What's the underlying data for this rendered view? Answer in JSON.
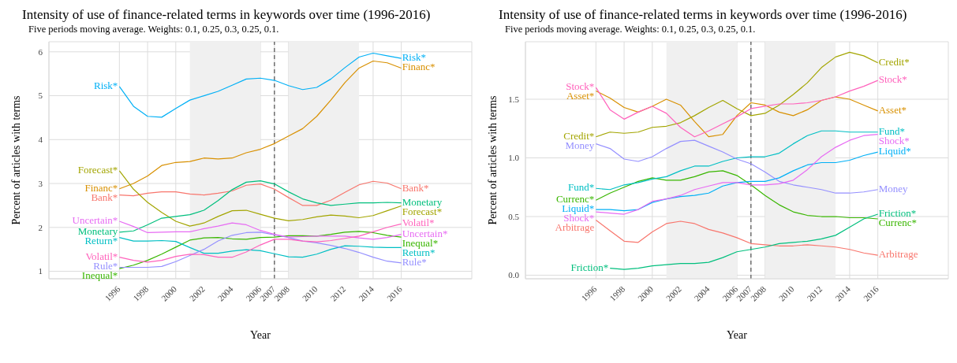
{
  "chart_data": [
    {
      "type": "line",
      "title": "Intensity of use of finance-related terms in keywords over time (1996-2016)",
      "subtitle": "Five periods moving average. Weights: 0.1, 0.25, 0.3, 0.25, 0.1.",
      "xlabel": "Year",
      "ylabel": "Percent of articles with terms",
      "x": [
        1996,
        1997,
        1998,
        1999,
        2000,
        2001,
        2002,
        2003,
        2004,
        2005,
        2006,
        2007,
        2008,
        2009,
        2010,
        2011,
        2012,
        2013,
        2014,
        2015,
        2016
      ],
      "series": [
        {
          "name": "Bank*",
          "color": "#f8766d",
          "values": [
            2.74,
            2.72,
            2.78,
            2.81,
            2.81,
            2.76,
            2.74,
            2.78,
            2.83,
            2.96,
            2.99,
            2.87,
            2.68,
            2.5,
            2.5,
            2.62,
            2.8,
            2.97,
            3.05,
            3.01,
            2.88
          ]
        },
        {
          "name": "Financ*",
          "color": "#d89000",
          "values": [
            2.88,
            3.0,
            3.17,
            3.41,
            3.48,
            3.5,
            3.58,
            3.56,
            3.58,
            3.7,
            3.78,
            3.91,
            4.08,
            4.25,
            4.53,
            4.9,
            5.3,
            5.63,
            5.79,
            5.75,
            5.63
          ]
        },
        {
          "name": "Forecast*",
          "color": "#a3a500",
          "values": [
            3.29,
            2.87,
            2.57,
            2.34,
            2.14,
            2.03,
            2.1,
            2.25,
            2.38,
            2.39,
            2.3,
            2.21,
            2.15,
            2.18,
            2.24,
            2.28,
            2.26,
            2.22,
            2.27,
            2.38,
            2.49
          ]
        },
        {
          "name": "Inequal*",
          "color": "#39b600",
          "values": [
            1.06,
            1.14,
            1.25,
            1.39,
            1.55,
            1.71,
            1.76,
            1.77,
            1.74,
            1.73,
            1.77,
            1.78,
            1.81,
            1.81,
            1.8,
            1.84,
            1.89,
            1.91,
            1.88,
            1.82,
            1.78
          ]
        },
        {
          "name": "Monetary",
          "color": "#00bf7d",
          "values": [
            1.89,
            1.92,
            2.06,
            2.21,
            2.25,
            2.29,
            2.39,
            2.61,
            2.86,
            3.03,
            3.06,
            2.99,
            2.81,
            2.65,
            2.56,
            2.5,
            2.53,
            2.56,
            2.56,
            2.57,
            2.56
          ]
        },
        {
          "name": "Return*",
          "color": "#00bfc4",
          "values": [
            1.77,
            1.69,
            1.69,
            1.7,
            1.68,
            1.54,
            1.41,
            1.41,
            1.46,
            1.49,
            1.47,
            1.4,
            1.33,
            1.32,
            1.39,
            1.5,
            1.58,
            1.57,
            1.55,
            1.54,
            1.54
          ]
        },
        {
          "name": "Risk*",
          "color": "#00b0f6",
          "values": [
            5.21,
            4.76,
            4.53,
            4.51,
            4.71,
            4.9,
            5.0,
            5.1,
            5.24,
            5.38,
            5.4,
            5.35,
            5.23,
            5.14,
            5.19,
            5.38,
            5.64,
            5.88,
            5.97,
            5.91,
            5.85
          ]
        },
        {
          "name": "Rule*",
          "color": "#9590ff",
          "values": [
            1.09,
            1.09,
            1.09,
            1.11,
            1.22,
            1.36,
            1.5,
            1.69,
            1.82,
            1.88,
            1.89,
            1.83,
            1.77,
            1.69,
            1.65,
            1.59,
            1.52,
            1.43,
            1.32,
            1.23,
            1.19
          ]
        },
        {
          "name": "Uncertain*",
          "color": "#e76bf3",
          "values": [
            2.14,
            2.02,
            1.88,
            1.89,
            1.9,
            1.9,
            1.97,
            2.03,
            2.1,
            2.06,
            1.93,
            1.84,
            1.78,
            1.79,
            1.8,
            1.8,
            1.8,
            1.76,
            1.73,
            1.77,
            1.84
          ]
        },
        {
          "name": "Volatil*",
          "color": "#ff62bc",
          "values": [
            1.32,
            1.25,
            1.21,
            1.25,
            1.34,
            1.39,
            1.38,
            1.32,
            1.32,
            1.44,
            1.6,
            1.73,
            1.73,
            1.69,
            1.67,
            1.7,
            1.75,
            1.8,
            1.9,
            2.0,
            2.08
          ]
        }
      ],
      "xlim": [
        1991,
        2021
      ],
      "xticks": [
        1996,
        1998,
        2000,
        2002,
        2004,
        2006,
        2007,
        2008,
        2010,
        2012,
        2014,
        2016
      ],
      "ylim": [
        0.83,
        6.23
      ],
      "yticks": [
        1,
        2,
        3,
        4,
        5,
        6
      ],
      "grid": true,
      "bands": [
        {
          "axis": "x",
          "from": 2001,
          "to": 2006,
          "color": "#f0f0f0"
        },
        {
          "axis": "x",
          "from": 2008,
          "to": 2013,
          "color": "#f0f0f0"
        }
      ],
      "ref_lines": [
        {
          "axis": "x",
          "value": 2007,
          "color": "#333333",
          "line_style": "dashed"
        }
      ]
    },
    {
      "type": "line",
      "title": "Intensity of use of finance-related terms in keywords over time (1996-2016)",
      "subtitle": "Five periods moving average. Weights: 0.1, 0.25, 0.3, 0.25, 0.1.",
      "xlabel": "Year",
      "ylabel": "Percent of articles with terms",
      "x": [
        1996,
        1997,
        1998,
        1999,
        2000,
        2001,
        2002,
        2003,
        2004,
        2005,
        2006,
        2007,
        2008,
        2009,
        2010,
        2011,
        2012,
        2013,
        2014,
        2015,
        2016
      ],
      "series": [
        {
          "name": "Arbitrage",
          "color": "#f8766d",
          "values": [
            0.47,
            0.38,
            0.29,
            0.28,
            0.37,
            0.44,
            0.46,
            0.44,
            0.39,
            0.36,
            0.32,
            0.27,
            0.26,
            0.25,
            0.25,
            0.26,
            0.25,
            0.24,
            0.22,
            0.19,
            0.17
          ]
        },
        {
          "name": "Asset*",
          "color": "#d89000",
          "values": [
            1.57,
            1.51,
            1.43,
            1.39,
            1.44,
            1.5,
            1.45,
            1.31,
            1.18,
            1.2,
            1.36,
            1.47,
            1.45,
            1.39,
            1.36,
            1.41,
            1.49,
            1.52,
            1.5,
            1.45,
            1.4
          ]
        },
        {
          "name": "Credit*",
          "color": "#a3a500",
          "values": [
            1.18,
            1.22,
            1.21,
            1.22,
            1.26,
            1.27,
            1.3,
            1.36,
            1.43,
            1.49,
            1.42,
            1.36,
            1.38,
            1.45,
            1.54,
            1.64,
            1.77,
            1.86,
            1.9,
            1.87,
            1.81
          ]
        },
        {
          "name": "Currenc*",
          "color": "#39b600",
          "values": [
            0.64,
            0.7,
            0.75,
            0.8,
            0.83,
            0.81,
            0.81,
            0.84,
            0.88,
            0.89,
            0.85,
            0.77,
            0.68,
            0.6,
            0.54,
            0.51,
            0.5,
            0.5,
            0.49,
            0.49,
            0.48
          ]
        },
        {
          "name": "Friction*",
          "color": "#00bf7d",
          "values": [
            null,
            0.06,
            0.05,
            0.06,
            0.08,
            0.09,
            0.1,
            0.1,
            0.11,
            0.15,
            0.2,
            0.22,
            0.24,
            0.27,
            0.28,
            0.29,
            0.31,
            0.34,
            0.41,
            0.48,
            0.52
          ]
        },
        {
          "name": "Fund*",
          "color": "#00bfc4",
          "values": [
            0.74,
            0.73,
            0.77,
            0.79,
            0.82,
            0.84,
            0.89,
            0.93,
            0.93,
            0.97,
            1.0,
            1.01,
            1.01,
            1.04,
            1.12,
            1.19,
            1.23,
            1.23,
            1.22,
            1.22,
            1.22
          ]
        },
        {
          "name": "Liquid*",
          "color": "#00b0f6",
          "values": [
            0.56,
            0.56,
            0.55,
            0.56,
            0.62,
            0.65,
            0.67,
            0.68,
            0.7,
            0.76,
            0.79,
            0.8,
            0.8,
            0.83,
            0.89,
            0.94,
            0.96,
            0.96,
            0.98,
            1.02,
            1.05
          ]
        },
        {
          "name": "Money",
          "color": "#9590ff",
          "values": [
            1.12,
            1.08,
            0.99,
            0.97,
            1.01,
            1.08,
            1.14,
            1.15,
            1.1,
            1.05,
            0.99,
            0.95,
            0.88,
            0.8,
            0.77,
            0.75,
            0.73,
            0.7,
            0.7,
            0.71,
            0.73
          ]
        },
        {
          "name": "Shock*",
          "color": "#e76bf3",
          "values": [
            0.54,
            0.53,
            0.52,
            0.56,
            0.63,
            0.65,
            0.68,
            0.73,
            0.76,
            0.79,
            0.79,
            0.77,
            0.77,
            0.78,
            0.81,
            0.9,
            1.01,
            1.09,
            1.15,
            1.19,
            1.2
          ]
        },
        {
          "name": "Stock*",
          "color": "#ff62bc",
          "values": [
            1.6,
            1.41,
            1.33,
            1.39,
            1.44,
            1.38,
            1.26,
            1.18,
            1.23,
            1.29,
            1.35,
            1.42,
            1.44,
            1.46,
            1.46,
            1.47,
            1.49,
            1.52,
            1.57,
            1.61,
            1.66
          ]
        }
      ],
      "xlim": [
        1991,
        2021
      ],
      "xticks": [
        1996,
        1998,
        2000,
        2002,
        2004,
        2006,
        2007,
        2008,
        2010,
        2012,
        2014,
        2016
      ],
      "ylim": [
        -0.03,
        1.99
      ],
      "yticks": [
        {
          "value": 0,
          "label": "0.0"
        },
        0.5,
        {
          "value": 1,
          "label": "1.0"
        },
        1.5
      ],
      "grid": true,
      "bands": [
        {
          "axis": "x",
          "from": 2001,
          "to": 2006,
          "color": "#f0f0f0"
        },
        {
          "axis": "x",
          "from": 2008,
          "to": 2013,
          "color": "#f0f0f0"
        }
      ],
      "ref_lines": [
        {
          "axis": "x",
          "value": 2007,
          "color": "#333333",
          "line_style": "dashed"
        }
      ]
    }
  ]
}
